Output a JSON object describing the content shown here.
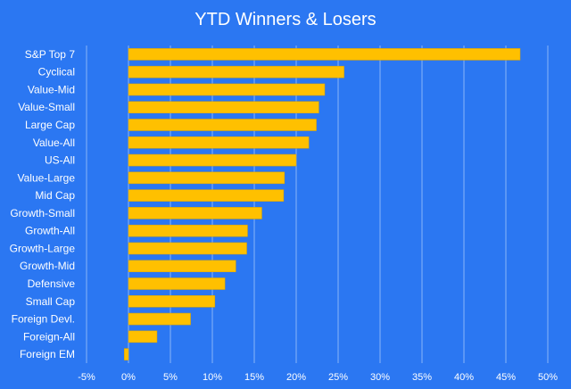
{
  "chart_data": {
    "type": "bar",
    "orientation": "horizontal",
    "title": "YTD Winners & Losers",
    "xlabel": "",
    "ylabel": "",
    "categories": [
      "S&P Top 7",
      "Cyclical",
      "Value-Mid",
      "Value-Small",
      "Large Cap",
      "Value-All",
      "US-All",
      "Value-Large",
      "Mid Cap",
      "Growth-Small",
      "Growth-All",
      "Growth-Large",
      "Growth-Mid",
      "Defensive",
      "Small Cap",
      "Foreign Devl.",
      "Foreign-All",
      "Foreign EM"
    ],
    "values": [
      46.7,
      25.7,
      23.4,
      22.7,
      22.4,
      21.5,
      20.0,
      18.6,
      18.5,
      15.9,
      14.2,
      14.1,
      12.8,
      11.5,
      10.3,
      7.4,
      3.4,
      -0.5
    ],
    "xlim": [
      -5,
      50
    ],
    "xticks": [
      -5,
      0,
      5,
      10,
      15,
      20,
      25,
      30,
      35,
      40,
      45,
      50
    ],
    "xtick_labels": [
      "-5%",
      "0%",
      "5%",
      "10%",
      "15%",
      "20%",
      "25%",
      "30%",
      "35%",
      "40%",
      "45%",
      "50%"
    ],
    "grid": true,
    "legend": "none",
    "colors": {
      "background": "#2b77f2",
      "bar": "#ffc000",
      "text": "#ffffff",
      "grid": "#ffffff"
    }
  }
}
